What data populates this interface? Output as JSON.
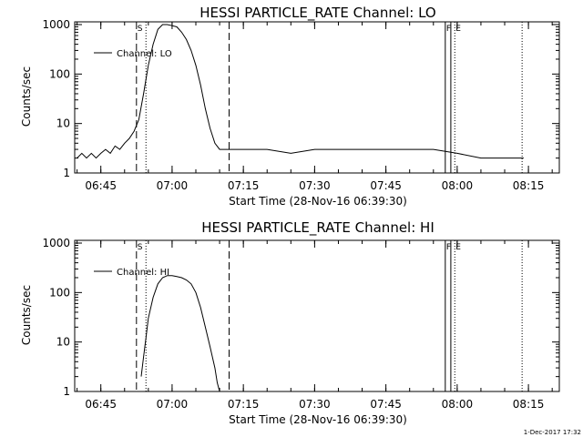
{
  "footer": {
    "timestamp": "1-Dec-2017 17:32"
  },
  "chart_data": [
    {
      "type": "line",
      "title": "HESSI PARTICLE_RATE Channel: LO",
      "xlabel": "Start Time (28-Nov-16 06:39:30)",
      "ylabel": "Counts/sec",
      "yscale": "log",
      "ylim": [
        1,
        1000
      ],
      "xlim": [
        "06:39:30",
        "08:21:30"
      ],
      "x_ticks": [
        "06:45",
        "07:00",
        "07:15",
        "07:30",
        "07:45",
        "08:00",
        "08:15"
      ],
      "y_ticks": [
        "1",
        "10",
        "100",
        "1000"
      ],
      "legend": {
        "label": "Channel: LO",
        "position": "top-left"
      },
      "markers": [
        {
          "time": "06:52:30",
          "style": "dashed",
          "label": "S"
        },
        {
          "time": "06:54:30",
          "style": "dotted",
          "label": ""
        },
        {
          "time": "07:12:00",
          "style": "dashed",
          "label": ""
        },
        {
          "time": "07:57:30",
          "style": "solid",
          "label": "F"
        },
        {
          "time": "07:58:40",
          "style": "solid",
          "label": ""
        },
        {
          "time": "07:59:30",
          "style": "dotted",
          "label": "E"
        },
        {
          "time": "08:13:40",
          "style": "dotted",
          "label": ""
        }
      ],
      "series": [
        {
          "name": "Channel: LO",
          "x": [
            "06:40:00",
            "06:41:00",
            "06:42:00",
            "06:43:00",
            "06:44:00",
            "06:45:00",
            "06:46:00",
            "06:47:00",
            "06:48:00",
            "06:49:00",
            "06:50:00",
            "06:51:00",
            "06:52:00",
            "06:53:00",
            "06:54:00",
            "06:55:00",
            "06:56:00",
            "06:57:00",
            "06:58:00",
            "06:59:00",
            "07:00:00",
            "07:01:00",
            "07:02:00",
            "07:03:00",
            "07:04:00",
            "07:05:00",
            "07:06:00",
            "07:07:00",
            "07:08:00",
            "07:09:00",
            "07:10:00",
            "07:11:00",
            "07:12:00",
            "07:15:00",
            "07:20:00",
            "07:25:00",
            "07:30:00",
            "07:35:00",
            "07:40:00",
            "07:45:00",
            "07:50:00",
            "07:55:00",
            "08:00:00",
            "08:05:00",
            "08:10:00",
            "08:14:00"
          ],
          "values": [
            2,
            2.5,
            2,
            2.5,
            2,
            2.5,
            3,
            2.5,
            3.5,
            3,
            4,
            5,
            7,
            12,
            40,
            150,
            400,
            800,
            1000,
            1000,
            950,
            900,
            700,
            500,
            300,
            150,
            60,
            20,
            8,
            4,
            3,
            3,
            3,
            3,
            3,
            2.5,
            3,
            3,
            3,
            3,
            3,
            3,
            2.5,
            2,
            2,
            2
          ]
        }
      ]
    },
    {
      "type": "line",
      "title": "HESSI PARTICLE_RATE Channel: HI",
      "xlabel": "Start Time (28-Nov-16 06:39:30)",
      "ylabel": "Counts/sec",
      "yscale": "log",
      "ylim": [
        1,
        1000
      ],
      "xlim": [
        "06:39:30",
        "08:21:30"
      ],
      "x_ticks": [
        "06:45",
        "07:00",
        "07:15",
        "07:30",
        "07:45",
        "08:00",
        "08:15"
      ],
      "y_ticks": [
        "1",
        "10",
        "100",
        "1000"
      ],
      "legend": {
        "label": "Channel: HI",
        "position": "top-left"
      },
      "markers": [
        {
          "time": "06:52:30",
          "style": "dashed",
          "label": "S"
        },
        {
          "time": "06:54:30",
          "style": "dotted",
          "label": ""
        },
        {
          "time": "07:12:00",
          "style": "dashed",
          "label": ""
        },
        {
          "time": "07:57:30",
          "style": "solid",
          "label": "F"
        },
        {
          "time": "07:58:40",
          "style": "solid",
          "label": ""
        },
        {
          "time": "07:59:30",
          "style": "dotted",
          "label": "E"
        },
        {
          "time": "08:13:40",
          "style": "dotted",
          "label": ""
        }
      ],
      "series": [
        {
          "name": "Channel: HI",
          "x": [
            "06:53:30",
            "06:54:00",
            "06:54:30",
            "06:55:00",
            "06:56:00",
            "06:57:00",
            "06:58:00",
            "06:59:00",
            "07:00:00",
            "07:01:00",
            "07:02:00",
            "07:03:00",
            "07:04:00",
            "07:05:00",
            "07:06:00",
            "07:07:00",
            "07:08:00",
            "07:09:00",
            "07:09:30",
            "07:10:00"
          ],
          "values": [
            2,
            5,
            12,
            30,
            80,
            150,
            200,
            220,
            220,
            210,
            200,
            180,
            150,
            100,
            50,
            20,
            8,
            3,
            1.5,
            1
          ]
        }
      ]
    }
  ]
}
